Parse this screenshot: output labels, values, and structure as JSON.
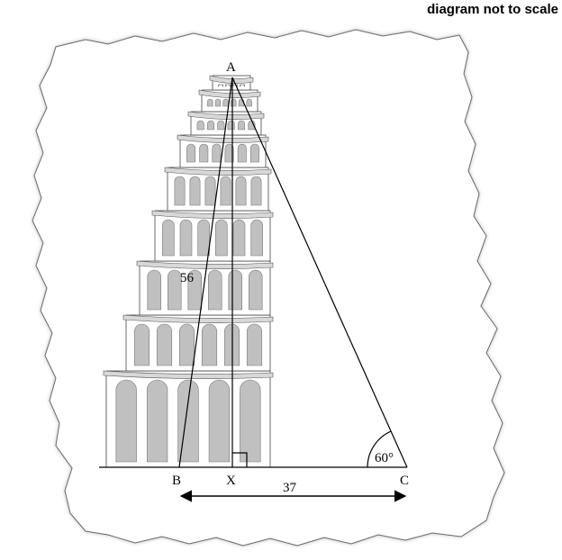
{
  "note": "diagram not to scale",
  "points": {
    "apex": "A",
    "left_base": "B",
    "foot": "X",
    "right_base": "C"
  },
  "measurements": {
    "side_ab": "56",
    "base_bc": "37",
    "angle_c": "60°"
  },
  "colors": {
    "paper_edge": "#555555",
    "tower_fill": "#ffffff",
    "window_fill": "#c0c0c0",
    "shadow": "#d8d8d8",
    "line": "#000000"
  },
  "icons": [
    "leaning-tower-illustration",
    "torn-paper-background",
    "double-arrow"
  ]
}
